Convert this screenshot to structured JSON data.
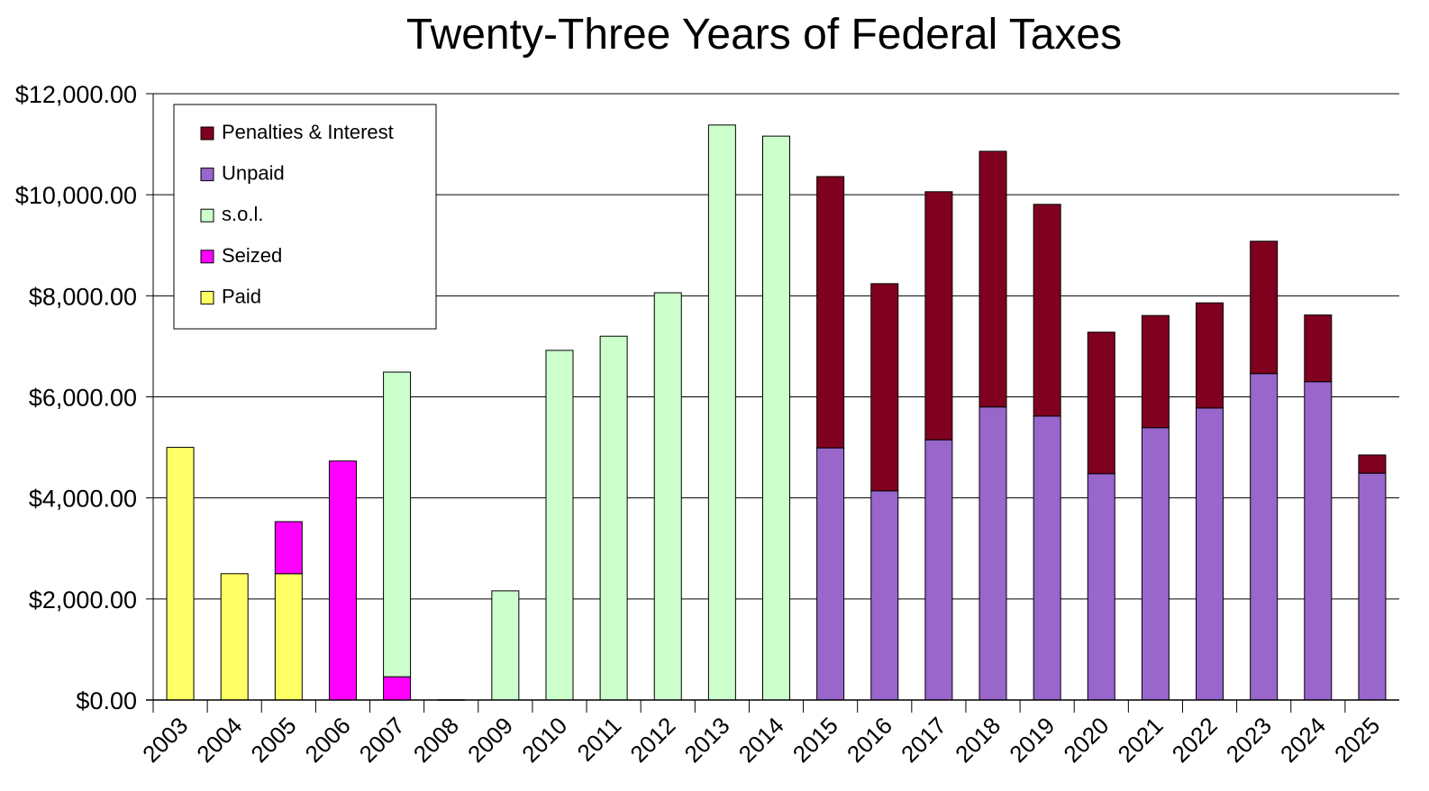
{
  "chart_data": {
    "type": "bar",
    "stacked": true,
    "title": "Twenty-Three Years of Federal Taxes",
    "xlabel": "",
    "ylabel": "",
    "ylim": [
      0,
      12000
    ],
    "yticks": [
      0,
      2000,
      4000,
      6000,
      8000,
      10000,
      12000
    ],
    "ytick_labels": [
      "$0.00",
      "$2,000.00",
      "$4,000.00",
      "$6,000.00",
      "$8,000.00",
      "$10,000.00",
      "$12,000.00"
    ],
    "grid": "horizontal",
    "legend_placement": "top-left",
    "categories": [
      "2003",
      "2004",
      "2005",
      "2006",
      "2007",
      "2008",
      "2009",
      "2010",
      "2011",
      "2012",
      "2013",
      "2014",
      "2015",
      "2016",
      "2017",
      "2018",
      "2019",
      "2020",
      "2021",
      "2022",
      "2023",
      "2024",
      "2025"
    ],
    "series": [
      {
        "name": "Paid",
        "color": "#ffff66",
        "values": [
          5000,
          2500,
          2500,
          0,
          0,
          0,
          0,
          0,
          0,
          0,
          0,
          0,
          0,
          0,
          0,
          0,
          0,
          0,
          0,
          0,
          0,
          0,
          0
        ]
      },
      {
        "name": "Seized",
        "color": "#ff00ff",
        "values": [
          0,
          0,
          1030,
          4730,
          460,
          0,
          0,
          0,
          0,
          0,
          0,
          0,
          0,
          0,
          0,
          0,
          0,
          0,
          0,
          0,
          0,
          0,
          0
        ]
      },
      {
        "name": "s.o.l.",
        "color": "#ccffcc",
        "values": [
          0,
          0,
          0,
          0,
          6030,
          0,
          2160,
          6920,
          7200,
          8060,
          11380,
          11160,
          0,
          0,
          0,
          0,
          0,
          0,
          0,
          0,
          0,
          0,
          0
        ]
      },
      {
        "name": "Unpaid",
        "color": "#9966cc",
        "values": [
          0,
          0,
          0,
          0,
          0,
          0,
          0,
          0,
          0,
          0,
          0,
          0,
          4990,
          4140,
          5150,
          5800,
          5620,
          4480,
          5390,
          5780,
          6460,
          6300,
          4490
        ]
      },
      {
        "name": "Penalties & Interest",
        "color": "#800020",
        "values": [
          0,
          0,
          0,
          0,
          0,
          0,
          0,
          0,
          0,
          0,
          0,
          0,
          5370,
          4100,
          4910,
          5060,
          4190,
          2800,
          2220,
          2080,
          2620,
          1320,
          360
        ]
      }
    ],
    "legend_order": [
      "Penalties & Interest",
      "Unpaid",
      "s.o.l.",
      "Seized",
      "Paid"
    ]
  }
}
